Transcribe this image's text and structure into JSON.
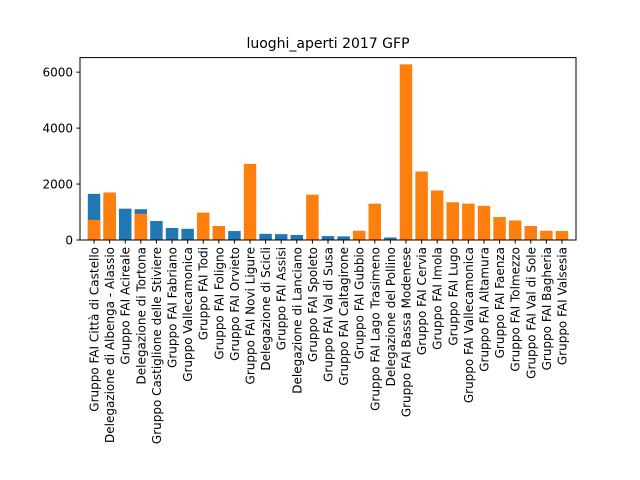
{
  "chart_data": {
    "type": "bar",
    "title": "luoghi_aperti  2017  GFP",
    "xlabel": "",
    "ylabel": "",
    "ylim": [
      0,
      6520
    ],
    "yticks": [
      0,
      2000,
      4000,
      6000
    ],
    "colors": {
      "blue": "#1f77b4",
      "orange": "#ff7f0e"
    },
    "categories": [
      "Gruppo FAI Città di Castello",
      "Delegazione di Albenga - Alassio",
      "Gruppo FAI Acireale",
      "Delegazione di Tortona",
      "Gruppo Castiglione delle Stiviere",
      "Gruppo FAI Fabriano",
      "Gruppo Vallecamonica",
      "Gruppo FAI Todi",
      "Gruppo FAI Foligno",
      "Gruppo FAI Orvieto",
      "Gruppo FAI Novi Ligure",
      "Delegazione di Scicli",
      "Gruppo FAI Assisi",
      "Delegazione di Lanciano",
      "Gruppo FAI Spoleto",
      "Gruppo FAI Val di Susa",
      "Gruppo FAI Caltagirone",
      "Gruppo FAI Gubbio",
      "Gruppo FAI Lago Trasimeno",
      "Delegazione del Pollino",
      "Gruppo FAI Bassa Modenese",
      "Gruppo FAI Cervia",
      "Gruppo FAI Imola",
      "Gruppo FAI Lugo",
      "Gruppo FAI Vallecamonica",
      "Gruppo FAI Altamura",
      "Gruppo FAI Faenza",
      "Gruppo FAI Tolmezzo",
      "Gruppo FAI Val di Sole",
      "Gruppo FAI Bagheria",
      "Gruppo FAI Valsesia"
    ],
    "series": [
      {
        "color": "#1f77b4",
        "values": [
          1650,
          1600,
          1120,
          1100,
          680,
          430,
          400,
          0,
          0,
          320,
          0,
          220,
          210,
          180,
          0,
          140,
          130,
          0,
          0,
          90,
          0,
          0,
          0,
          0,
          0,
          0,
          0,
          0,
          0,
          0,
          0
        ]
      },
      {
        "color": "#ff7f0e",
        "values": [
          720,
          1700,
          0,
          940,
          0,
          0,
          0,
          980,
          500,
          0,
          2720,
          0,
          0,
          0,
          1620,
          0,
          0,
          330,
          1300,
          0,
          6280,
          2450,
          1770,
          1350,
          1300,
          1220,
          820,
          700,
          500,
          330,
          320
        ]
      }
    ]
  }
}
